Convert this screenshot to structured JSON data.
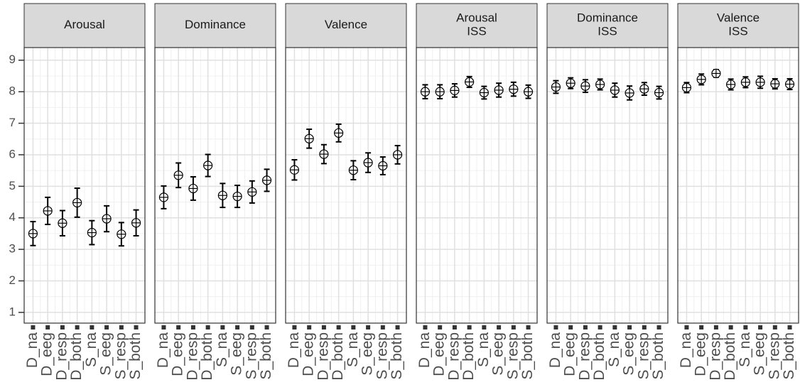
{
  "chart_data": [
    {
      "type": "errorbar",
      "title": "Arousal",
      "categories": [
        "D_na",
        "D_eeg",
        "D_resp",
        "D_both",
        "S_na",
        "S_eeg",
        "S_resp",
        "S_both"
      ],
      "values": [
        3.5,
        4.22,
        3.83,
        4.48,
        3.53,
        3.97,
        3.48,
        3.84
      ],
      "errors": [
        0.38,
        0.43,
        0.4,
        0.46,
        0.38,
        0.41,
        0.37,
        0.41
      ],
      "ylim": [
        0.66,
        9.4
      ],
      "yticks": [
        1,
        2,
        3,
        4,
        5,
        6,
        7,
        8,
        9
      ],
      "grid": true,
      "color": "#000000"
    },
    {
      "type": "errorbar",
      "title": "Dominance",
      "categories": [
        "D_na",
        "D_eeg",
        "D_resp",
        "D_both",
        "S_na",
        "S_eeg",
        "S_resp",
        "S_both"
      ],
      "values": [
        4.65,
        5.35,
        4.93,
        5.66,
        4.71,
        4.68,
        4.82,
        5.19
      ],
      "errors": [
        0.36,
        0.39,
        0.37,
        0.35,
        0.38,
        0.35,
        0.35,
        0.35
      ],
      "ylim": [
        0.66,
        9.4
      ],
      "yticks": [
        1,
        2,
        3,
        4,
        5,
        6,
        7,
        8,
        9
      ],
      "grid": true,
      "color": "#000000"
    },
    {
      "type": "errorbar",
      "title": "Valence",
      "categories": [
        "D_na",
        "D_eeg",
        "D_resp",
        "D_both",
        "S_na",
        "S_eeg",
        "S_resp",
        "S_both"
      ],
      "values": [
        5.52,
        6.51,
        6.02,
        6.69,
        5.51,
        5.75,
        5.65,
        6.0
      ],
      "errors": [
        0.32,
        0.3,
        0.3,
        0.28,
        0.3,
        0.31,
        0.28,
        0.29
      ],
      "ylim": [
        0.66,
        9.4
      ],
      "yticks": [
        1,
        2,
        3,
        4,
        5,
        6,
        7,
        8,
        9
      ],
      "grid": true,
      "color": "#000000"
    },
    {
      "type": "errorbar",
      "title": "Arousal\nISS",
      "categories": [
        "D_na",
        "D_eeg",
        "D_resp",
        "D_both",
        "S_na",
        "S_eeg",
        "S_resp",
        "S_both"
      ],
      "values": [
        8.0,
        8.0,
        8.04,
        8.31,
        7.97,
        8.05,
        8.08,
        8.0
      ],
      "errors": [
        0.22,
        0.22,
        0.21,
        0.17,
        0.2,
        0.22,
        0.22,
        0.21
      ],
      "ylim": [
        0.66,
        9.4
      ],
      "yticks": [
        1,
        2,
        3,
        4,
        5,
        6,
        7,
        8,
        9
      ],
      "grid": true,
      "color": "#000000"
    },
    {
      "type": "errorbar",
      "title": "Dominance\nISS",
      "categories": [
        "D_na",
        "D_eeg",
        "D_resp",
        "D_both",
        "S_na",
        "S_eeg",
        "S_resp",
        "S_both"
      ],
      "values": [
        8.15,
        8.27,
        8.18,
        8.23,
        8.05,
        7.96,
        8.09,
        7.97
      ],
      "errors": [
        0.2,
        0.17,
        0.2,
        0.17,
        0.22,
        0.22,
        0.2,
        0.2
      ],
      "ylim": [
        0.66,
        9.4
      ],
      "yticks": [
        1,
        2,
        3,
        4,
        5,
        6,
        7,
        8,
        9
      ],
      "grid": true,
      "color": "#000000"
    },
    {
      "type": "errorbar",
      "title": "Valence\nISS",
      "categories": [
        "D_na",
        "D_eeg",
        "D_resp",
        "D_both",
        "S_na",
        "S_eeg",
        "S_resp",
        "S_both"
      ],
      "values": [
        8.13,
        8.39,
        8.58,
        8.23,
        8.3,
        8.3,
        8.25,
        8.24
      ],
      "errors": [
        0.16,
        0.17,
        0.12,
        0.17,
        0.17,
        0.19,
        0.16,
        0.17
      ],
      "ylim": [
        0.66,
        9.4
      ],
      "yticks": [
        1,
        2,
        3,
        4,
        5,
        6,
        7,
        8,
        9
      ],
      "grid": true,
      "color": "#000000"
    }
  ]
}
